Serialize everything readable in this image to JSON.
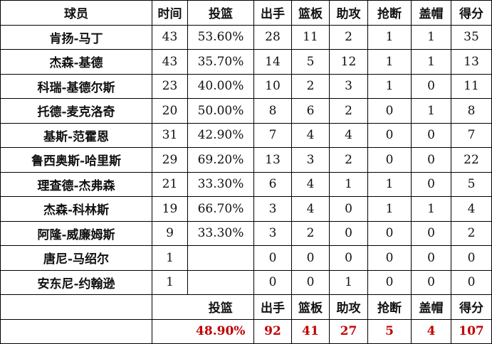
{
  "headers": [
    "球员",
    "时间",
    "投篮",
    "出手",
    "篮板",
    "助攻",
    "抢断",
    "盖帽",
    "得分"
  ],
  "rows": [
    [
      "肯扬-马丁",
      "43",
      "53.60%",
      "28",
      "11",
      "2",
      "1",
      "1",
      "35"
    ],
    [
      "杰森-基德",
      "43",
      "35.70%",
      "14",
      "5",
      "12",
      "1",
      "1",
      "13"
    ],
    [
      "科瑞-基德尔斯",
      "23",
      "40.00%",
      "10",
      "2",
      "3",
      "1",
      "0",
      "11"
    ],
    [
      "托德-麦克洛奇",
      "20",
      "50.00%",
      "8",
      "6",
      "2",
      "0",
      "1",
      "8"
    ],
    [
      "基斯-范霍恩",
      "31",
      "42.90%",
      "7",
      "4",
      "4",
      "0",
      "0",
      "7"
    ],
    [
      "鲁西奥斯-哈里斯",
      "29",
      "69.20%",
      "13",
      "3",
      "2",
      "0",
      "0",
      "22"
    ],
    [
      "理查德-杰弗森",
      "21",
      "33.30%",
      "6",
      "4",
      "1",
      "1",
      "0",
      "5"
    ],
    [
      "杰森-科林斯",
      "19",
      "66.70%",
      "3",
      "4",
      "0",
      "1",
      "1",
      "4"
    ],
    [
      "阿隆-威廉姆斯",
      "9",
      "33.30%",
      "3",
      "2",
      "0",
      "0",
      "0",
      "2"
    ],
    [
      "唐尼-马绍尔",
      "1",
      "",
      "0",
      "0",
      "0",
      "0",
      "0",
      "0"
    ],
    [
      "安东尼-约翰逊",
      "1",
      "",
      "0",
      "0",
      "1",
      "0",
      "0",
      "0"
    ]
  ],
  "summary_headers": [
    "投篮",
    "出手",
    "篮板",
    "助攻",
    "抢断",
    "盖帽",
    "得分"
  ],
  "totals": [
    "48.90%",
    "92",
    "41",
    "27",
    "5",
    "4",
    "107"
  ],
  "colors": {
    "total_text": "#c00000",
    "border": "#000000"
  }
}
